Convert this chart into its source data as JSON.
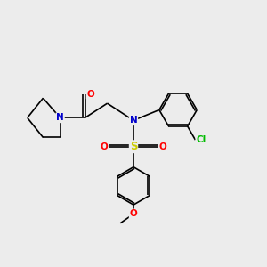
{
  "bg_color": "#ececec",
  "bond_color": "#000000",
  "bond_width": 1.2,
  "atoms": {
    "N": {
      "color": "#0000cc"
    },
    "O": {
      "color": "#ff0000"
    },
    "S": {
      "color": "#cccc00"
    },
    "Cl": {
      "color": "#00bb00"
    },
    "C": {
      "color": "#000000"
    }
  },
  "font_size": 7.5,
  "fig_size": [
    3.0,
    3.0
  ],
  "dpi": 100
}
